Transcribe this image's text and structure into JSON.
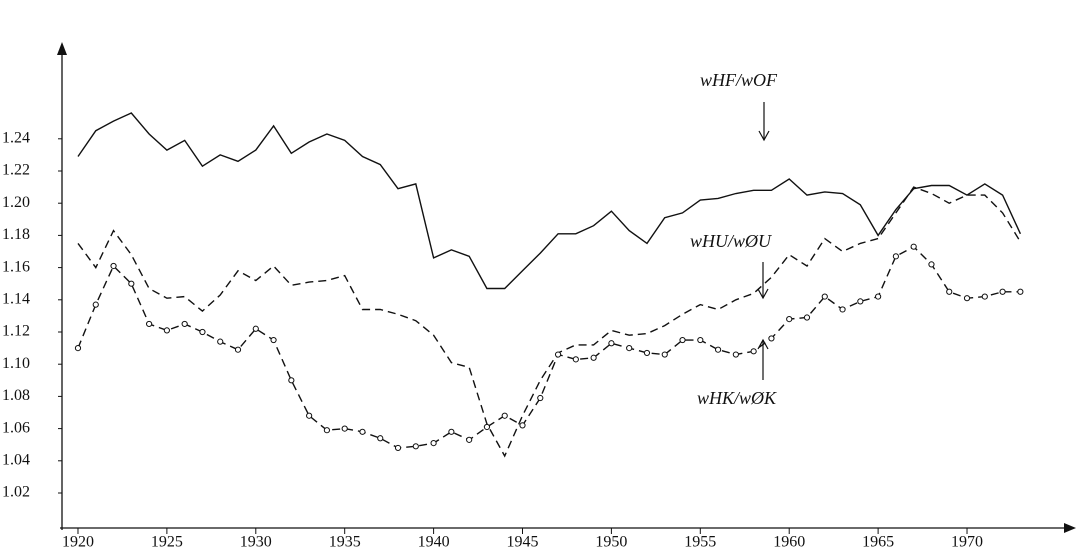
{
  "chart_data": {
    "type": "line",
    "x": [
      1920,
      1921,
      1922,
      1923,
      1924,
      1925,
      1926,
      1927,
      1928,
      1929,
      1930,
      1931,
      1932,
      1933,
      1934,
      1935,
      1936,
      1937,
      1938,
      1939,
      1940,
      1941,
      1942,
      1943,
      1944,
      1945,
      1946,
      1947,
      1948,
      1949,
      1950,
      1951,
      1952,
      1953,
      1954,
      1955,
      1956,
      1957,
      1958,
      1959,
      1960,
      1961,
      1962,
      1963,
      1964,
      1965,
      1966,
      1967,
      1968,
      1969,
      1970,
      1971,
      1972,
      1973
    ],
    "series": [
      {
        "name": "wHF/wOF",
        "color": "#111111",
        "dash": "solid",
        "marker": "none",
        "values": [
          1.229,
          1.245,
          1.251,
          1.256,
          1.243,
          1.233,
          1.239,
          1.223,
          1.23,
          1.226,
          1.233,
          1.248,
          1.231,
          1.238,
          1.243,
          1.239,
          1.229,
          1.224,
          1.209,
          1.212,
          1.166,
          1.171,
          1.167,
          1.147,
          1.147,
          1.158,
          1.169,
          1.181,
          1.181,
          1.186,
          1.195,
          1.183,
          1.175,
          1.191,
          1.194,
          1.202,
          1.203,
          1.206,
          1.208,
          1.208,
          1.215,
          1.205,
          1.207,
          1.206,
          1.199,
          1.18,
          1.196,
          1.209,
          1.211,
          1.211,
          1.205,
          1.212,
          1.205,
          1.181
        ]
      },
      {
        "name": "wHU/wØU",
        "color": "#111111",
        "dash": "dashed",
        "marker": "none",
        "values": [
          1.175,
          1.16,
          1.183,
          1.168,
          1.147,
          1.141,
          1.142,
          1.133,
          1.143,
          1.158,
          1.152,
          1.161,
          1.149,
          1.151,
          1.152,
          1.155,
          1.134,
          1.134,
          1.131,
          1.127,
          1.118,
          1.101,
          1.098,
          1.063,
          1.043,
          1.068,
          1.09,
          1.107,
          1.112,
          1.112,
          1.121,
          1.118,
          1.119,
          1.124,
          1.131,
          1.137,
          1.134,
          1.14,
          1.144,
          1.154,
          1.168,
          1.161,
          1.178,
          1.17,
          1.175,
          1.178,
          1.194,
          1.21,
          1.206,
          1.2,
          1.205,
          1.205,
          1.194,
          1.176
        ]
      },
      {
        "name": "wHK/wØK",
        "color": "#111111",
        "dash": "dashed",
        "marker": "circle",
        "values": [
          1.11,
          1.137,
          1.161,
          1.15,
          1.125,
          1.121,
          1.125,
          1.12,
          1.114,
          1.109,
          1.122,
          1.115,
          1.09,
          1.068,
          1.059,
          1.06,
          1.058,
          1.054,
          1.048,
          1.049,
          1.051,
          1.058,
          1.053,
          1.061,
          1.068,
          1.062,
          1.079,
          1.106,
          1.103,
          1.104,
          1.113,
          1.11,
          1.107,
          1.106,
          1.115,
          1.115,
          1.109,
          1.106,
          1.108,
          1.116,
          1.128,
          1.129,
          1.142,
          1.134,
          1.139,
          1.142,
          1.167,
          1.173,
          1.162,
          1.145,
          1.141,
          1.142,
          1.145,
          1.145
        ]
      }
    ],
    "xlim": [
      1919,
      1976
    ],
    "ylim": [
      1.0,
      1.3
    ],
    "xticks": [
      1920,
      1925,
      1930,
      1935,
      1940,
      1945,
      1950,
      1955,
      1960,
      1965,
      1970
    ],
    "yticks": [
      {
        "value": 1.02,
        "label": "1.02"
      },
      {
        "value": 1.04,
        "label": "1.04"
      },
      {
        "value": 1.06,
        "label": "1.06"
      },
      {
        "value": 1.08,
        "label": "1.08"
      },
      {
        "value": 1.1,
        "label": "1.10"
      },
      {
        "value": 1.12,
        "label": "1.12"
      },
      {
        "value": 1.14,
        "label": "1.14"
      },
      {
        "value": 1.16,
        "label": "1.16"
      },
      {
        "value": 1.18,
        "label": "1.18"
      },
      {
        "value": 1.2,
        "label": "1.20"
      },
      {
        "value": 1.22,
        "label": "1.22"
      },
      {
        "value": 1.24,
        "label": "1.24"
      }
    ],
    "grid": false
  }
}
